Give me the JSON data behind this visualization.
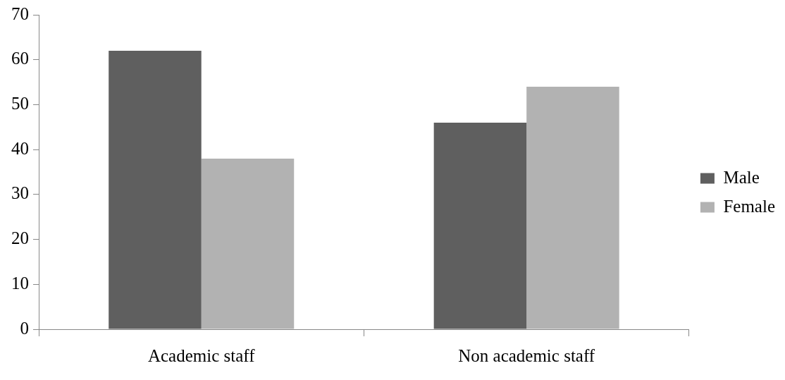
{
  "chart_data": {
    "type": "bar",
    "categories": [
      "Academic staff",
      "Non academic staff"
    ],
    "series": [
      {
        "name": "Male",
        "color": "#5f5f5f",
        "values": [
          62,
          46
        ]
      },
      {
        "name": "Female",
        "color": "#b2b2b2",
        "values": [
          38,
          54
        ]
      }
    ],
    "ylim": [
      0,
      70
    ],
    "yticks": [
      0,
      10,
      20,
      30,
      40,
      50,
      60,
      70
    ],
    "grid": false,
    "legend": "right"
  }
}
